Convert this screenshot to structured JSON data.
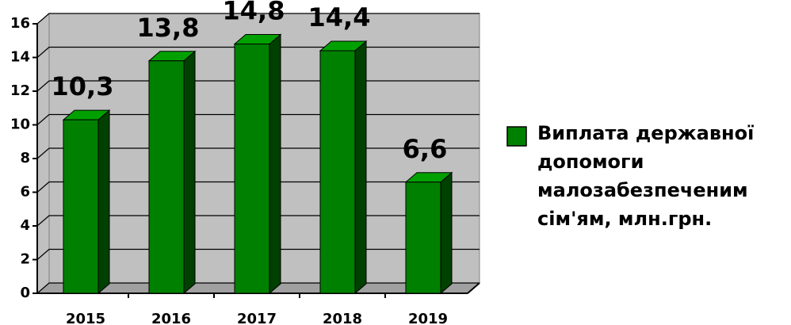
{
  "chart_data": {
    "type": "bar3d",
    "categories": [
      "2015",
      "2016",
      "2017",
      "2018",
      "2019"
    ],
    "series": [
      {
        "name": "Виплата державної допомоги малозабезпеченим сім'ям, млн.грн.",
        "color": "#008000",
        "values": [
          10.3,
          13.8,
          14.8,
          14.4,
          6.6
        ],
        "value_labels": [
          "10,3",
          "13,8",
          "14,8",
          "14,4",
          "6,6"
        ]
      }
    ],
    "ylim": [
      0,
      16
    ],
    "yticks": [
      0,
      2,
      4,
      6,
      8,
      10,
      12,
      14,
      16
    ],
    "grid": true,
    "legend": "right"
  }
}
